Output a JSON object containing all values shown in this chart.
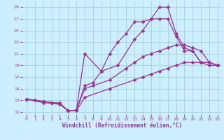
{
  "xlabel": "Windchill (Refroidissement éolien,°C)",
  "xlim": [
    -0.5,
    23.5
  ],
  "ylim": [
    10.5,
    30
  ],
  "xticks": [
    0,
    1,
    2,
    3,
    4,
    5,
    6,
    7,
    8,
    9,
    10,
    11,
    12,
    13,
    14,
    15,
    16,
    17,
    18,
    19,
    20,
    21,
    22,
    23
  ],
  "yticks": [
    11,
    13,
    15,
    17,
    19,
    21,
    23,
    25,
    27,
    29
  ],
  "background_color": "#cceeff",
  "grid_color": "#99cccc",
  "line_color": "#993399",
  "lines": [
    {
      "x": [
        0,
        1,
        2,
        3,
        4,
        5,
        6,
        7,
        10,
        13,
        14,
        15,
        16,
        17,
        18,
        19,
        20,
        21,
        22,
        23
      ],
      "y": [
        13.2,
        13.0,
        12.8,
        12.6,
        12.5,
        11.2,
        11.2,
        13.5,
        15.0,
        16.5,
        17.0,
        17.5,
        18.0,
        18.5,
        19.0,
        19.5,
        19.5,
        19.5,
        19.0,
        19.0
      ]
    },
    {
      "x": [
        0,
        2,
        3,
        4,
        5,
        6,
        7,
        8,
        10,
        12,
        13,
        14,
        15,
        16,
        17,
        18,
        19,
        20,
        21,
        22,
        23
      ],
      "y": [
        13.2,
        12.6,
        12.5,
        12.3,
        11.2,
        11.3,
        15.0,
        15.5,
        16.5,
        18.5,
        19.5,
        20.5,
        21.0,
        21.5,
        22.0,
        22.5,
        22.5,
        22.0,
        21.5,
        19.5,
        19.0
      ]
    },
    {
      "x": [
        0,
        1,
        2,
        3,
        4,
        5,
        6,
        7,
        8,
        9,
        10,
        11,
        12,
        13,
        14,
        15,
        16,
        17,
        18,
        19,
        20,
        21,
        22,
        23
      ],
      "y": [
        13.2,
        13.0,
        12.8,
        12.6,
        12.5,
        11.2,
        11.3,
        15.5,
        16.0,
        18.0,
        21.0,
        23.0,
        24.5,
        26.5,
        26.5,
        27.0,
        29.0,
        29.0,
        24.5,
        22.0,
        21.5,
        19.5,
        19.5,
        19.0
      ]
    },
    {
      "x": [
        0,
        2,
        3,
        4,
        5,
        6,
        7,
        9,
        11,
        13,
        14,
        15,
        16,
        17,
        18,
        19,
        20,
        21,
        22,
        23
      ],
      "y": [
        13.2,
        12.8,
        12.6,
        12.4,
        11.2,
        11.3,
        21.0,
        18.0,
        19.0,
        23.5,
        25.0,
        27.0,
        27.0,
        27.0,
        24.0,
        21.5,
        21.5,
        19.5,
        19.5,
        19.0
      ]
    }
  ],
  "marker": "D",
  "markersize": 2.5,
  "linewidth": 0.9
}
